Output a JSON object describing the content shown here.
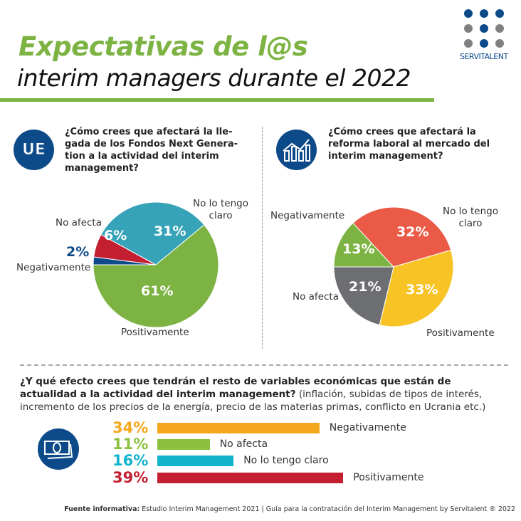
{
  "header": {
    "title_line1": "Expectativas de l@s",
    "title_line2": "interim managers durante el 2022",
    "logo_text": "SERVITALENT"
  },
  "colors": {
    "green": "#7cb342",
    "navy": "#0d4a8a",
    "gray_dot": "#808080"
  },
  "chart_data": [
    {
      "type": "pie",
      "icon": "ue-icon",
      "icon_text": "UE",
      "title": "¿Cómo crees que afectará la llegada de los Fondos Next Generation a la actividad del interim management?",
      "title_lines": [
        "¿Cómo crees que afectará la lle-",
        "gada de los Fondos Next Genera-",
        "tion a la actividad del interim",
        "management?"
      ],
      "slices": [
        {
          "label": "Negativamente",
          "value": 2,
          "display": "2%",
          "color": "#0d4a8a"
        },
        {
          "label": "No afecta",
          "value": 6,
          "display": "6%",
          "color": "#c41f30"
        },
        {
          "label": "No lo tengo claro",
          "value": 31,
          "display": "31%",
          "color": "#36a3b8"
        },
        {
          "label": "Positivamente",
          "value": 61,
          "display": "61%",
          "color": "#7cb342"
        }
      ]
    },
    {
      "type": "pie",
      "icon": "chart-growth-icon",
      "title": "¿Cómo crees que afectará la reforma laboral al mercado del interim management?",
      "title_lines": [
        "¿Cómo crees que afectará la",
        "reforma laboral al mercado del",
        "interim management?"
      ],
      "slices": [
        {
          "label": "Negativamente",
          "value": 13,
          "display": "13%",
          "color": "#7cb342"
        },
        {
          "label": "No lo tengo claro",
          "value": 32,
          "display": "32%",
          "color": "#ea5a47"
        },
        {
          "label": "Positivamente",
          "value": 33,
          "display": "33%",
          "color": "#f7c325"
        },
        {
          "label": "No afecta",
          "value": 21,
          "display": "21%",
          "color": "#6d6e71"
        }
      ]
    },
    {
      "type": "bar",
      "orientation": "horizontal",
      "icon": "money-icon",
      "title_bold": "¿Y qué efecto crees que tendrán el resto de variables económicas que están de actualidad a la actividad del interim management?",
      "title_rest": "(inflación, subidas de tipos de interés, incremento de los precios de la energía, precio de las materias primas, conflicto en Ucrania etc.)",
      "categories": [
        "Negativamente",
        "No afecta",
        "No lo tengo claro",
        "Positivamente"
      ],
      "values": [
        34,
        11,
        16,
        39
      ],
      "displays": [
        "34%",
        "11%",
        "16%",
        "39%"
      ],
      "colors": [
        "#f5a71b",
        "#8dc03f",
        "#12b3cc",
        "#c41f30"
      ]
    }
  ],
  "footer": {
    "bold": "Fuente informativa:",
    "text": " Estudio Interim Management 2021 | Guía para la contratación del Interim Management by Servitalent ® 2022"
  }
}
